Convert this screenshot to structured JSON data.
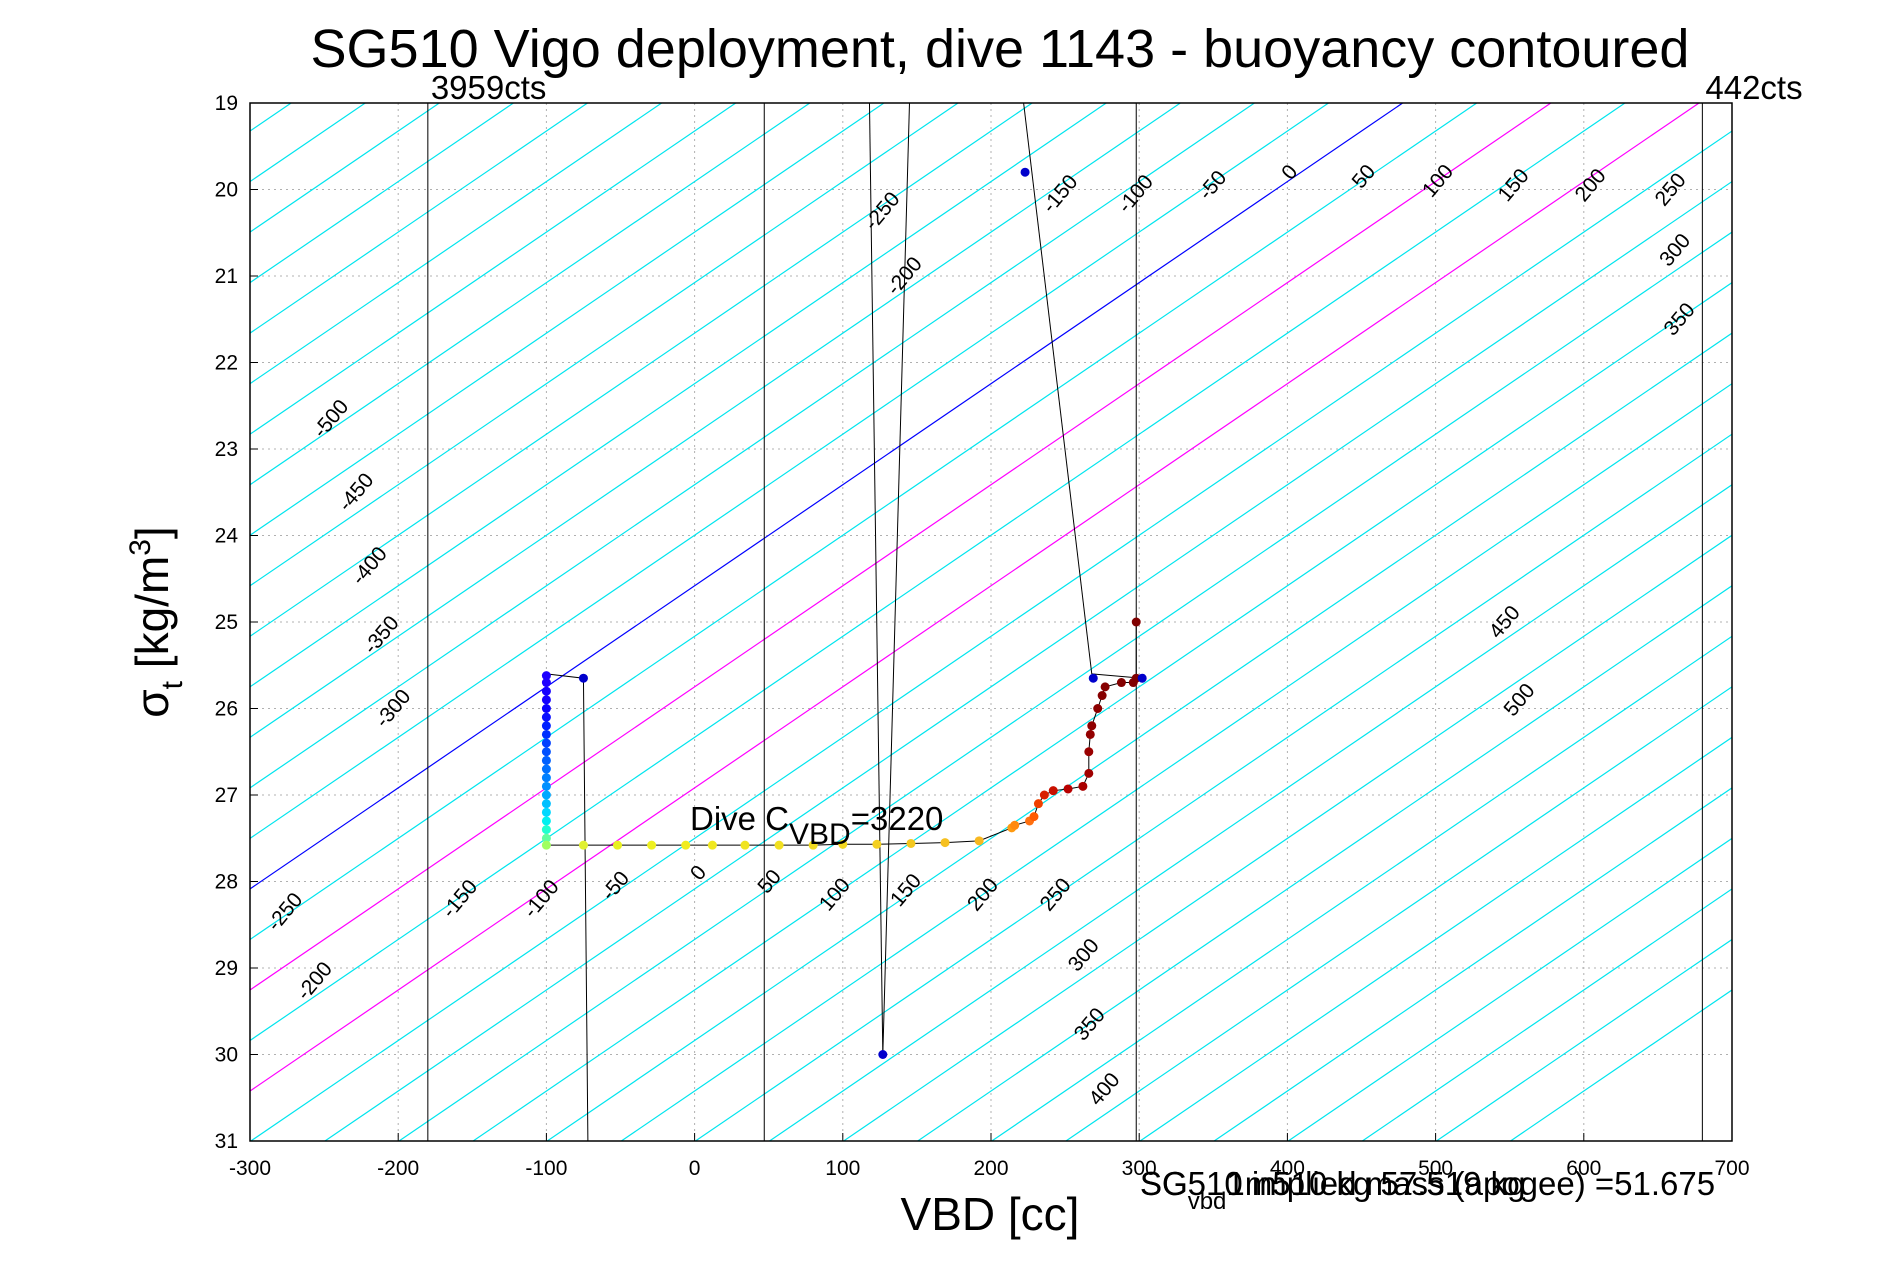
{
  "chart_data": {
    "type": "scatter",
    "title": "SG510 Vigo deployment, dive 1143 - buoyancy contoured",
    "xlabel": "VBD [cc]",
    "ylabel": "σt [kg/m3]",
    "ylabel_parts": {
      "sigma": "σ",
      "sub": "t",
      "main": " [kg/m",
      "sup": "3",
      "end": "]"
    },
    "xlim": [
      -300,
      700
    ],
    "ylim": [
      19,
      31
    ],
    "y_reversed": true,
    "grid": true,
    "x_ticks": [
      -300,
      -200,
      -100,
      0,
      100,
      200,
      300,
      400,
      500,
      600,
      700
    ],
    "y_ticks": [
      19,
      20,
      21,
      22,
      23,
      24,
      25,
      26,
      27,
      28,
      29,
      30,
      31
    ],
    "vertical_lines": [
      {
        "x": -180,
        "label": "3959cts"
      },
      {
        "x": 680,
        "label": "442cts"
      },
      {
        "x": 47
      },
      {
        "x": 298
      }
    ],
    "buoyancy_contours": {
      "unit_note": "contour levels (buoyancy)",
      "levels": [
        -500,
        -450,
        -400,
        -350,
        -300,
        -250,
        -200,
        -150,
        -100,
        -50,
        0,
        50,
        100,
        150,
        200,
        250,
        300,
        350,
        400,
        450,
        500
      ],
      "highlight": {
        "0": "#0000ff",
        "100": "#ff00ff",
        "200": "#ff00ff"
      },
      "default_color": "#00e5ee",
      "labels": [
        {
          "level": "-500",
          "vbd": -242,
          "sigma": 22.7
        },
        {
          "level": "-450",
          "vbd": -225,
          "sigma": 23.55
        },
        {
          "level": "-400",
          "vbd": -216,
          "sigma": 24.4
        },
        {
          "level": "-350",
          "vbd": -208,
          "sigma": 25.2
        },
        {
          "level": "-300",
          "vbd": -200,
          "sigma": 26.05
        },
        {
          "level": "-250",
          "vbd": -273,
          "sigma": 28.4
        },
        {
          "level": "-200",
          "vbd": -253,
          "sigma": 29.2
        },
        {
          "level": "-150",
          "vbd": -155,
          "sigma": 28.25
        },
        {
          "level": "-100",
          "vbd": -100,
          "sigma": 28.25
        },
        {
          "level": "-50",
          "vbd": -50,
          "sigma": 28.1
        },
        {
          "level": "0",
          "vbd": 6,
          "sigma": 27.95
        },
        {
          "level": "50",
          "vbd": 54,
          "sigma": 28.05
        },
        {
          "level": "100",
          "vbd": 98,
          "sigma": 28.2
        },
        {
          "level": "150",
          "vbd": 146,
          "sigma": 28.15
        },
        {
          "level": "200",
          "vbd": 198,
          "sigma": 28.2
        },
        {
          "level": "250",
          "vbd": 247,
          "sigma": 28.2
        },
        {
          "level": "300",
          "vbd": 266,
          "sigma": 28.9
        },
        {
          "level": "350",
          "vbd": 270,
          "sigma": 29.7
        },
        {
          "level": "400",
          "vbd": 280,
          "sigma": 30.45
        },
        {
          "level": "-250",
          "vbd": 130,
          "sigma": 20.3
        },
        {
          "level": "-200",
          "vbd": 145,
          "sigma": 21.05
        },
        {
          "level": "-150",
          "vbd": 250,
          "sigma": 20.1
        },
        {
          "level": "-100",
          "vbd": 301,
          "sigma": 20.1
        },
        {
          "level": "-50",
          "vbd": 353,
          "sigma": 20.0
        },
        {
          "level": "0",
          "vbd": 405,
          "sigma": 19.85
        },
        {
          "level": "50",
          "vbd": 455,
          "sigma": 19.9
        },
        {
          "level": "100",
          "vbd": 505,
          "sigma": 19.95
        },
        {
          "level": "150",
          "vbd": 556,
          "sigma": 20.0
        },
        {
          "level": "200",
          "vbd": 608,
          "sigma": 20.0
        },
        {
          "level": "250",
          "vbd": 662,
          "sigma": 20.05
        },
        {
          "level": "300",
          "vbd": 665,
          "sigma": 20.75
        },
        {
          "level": "350",
          "vbd": 668,
          "sigma": 21.55
        },
        {
          "level": "450",
          "vbd": 550,
          "sigma": 25.05
        },
        {
          "level": "500",
          "vbd": 560,
          "sigma": 25.95
        }
      ]
    },
    "dive_track": {
      "color": "#000000",
      "points": [
        [
          -100,
          25.6
        ],
        [
          -75,
          25.65
        ],
        [
          -72,
          31.0
        ]
      ]
    },
    "extra_lines": [
      {
        "points": [
          [
            118,
            19.0
          ],
          [
            127,
            30.0
          ]
        ]
      },
      {
        "points": [
          [
            127,
            30.0
          ],
          [
            145,
            19.0
          ]
        ]
      },
      {
        "points": [
          [
            222,
            19.0
          ],
          [
            268,
            25.6
          ]
        ]
      },
      {
        "points": [
          [
            268,
            25.6
          ],
          [
            302,
            25.65
          ]
        ]
      }
    ],
    "series": [
      {
        "name": "",
        "points": [
          [
            -100,
            25.62
          ],
          [
            -100,
            25.7
          ],
          [
            -100,
            25.8
          ],
          [
            -100,
            25.9
          ],
          [
            -100,
            26.0
          ],
          [
            -100,
            26.1
          ],
          [
            -100,
            26.2
          ],
          [
            -100,
            26.3
          ],
          [
            -100,
            26.4
          ],
          [
            -100,
            26.5
          ],
          [
            -100,
            26.6
          ],
          [
            -100,
            26.7
          ],
          [
            -100,
            26.8
          ],
          [
            -100,
            26.9
          ],
          [
            -100,
            27.0
          ],
          [
            -100,
            27.1
          ],
          [
            -100,
            27.2
          ],
          [
            -100,
            27.3
          ],
          [
            -100,
            27.4
          ],
          [
            -100,
            27.5
          ],
          [
            -100,
            27.58
          ],
          [
            -75,
            27.58
          ],
          [
            -52,
            27.58
          ],
          [
            -29,
            27.58
          ],
          [
            -6,
            27.58
          ],
          [
            12,
            27.58
          ],
          [
            34,
            27.58
          ],
          [
            57,
            27.58
          ],
          [
            80,
            27.58
          ],
          [
            100,
            27.57
          ],
          [
            123,
            27.57
          ],
          [
            146,
            27.56
          ],
          [
            169,
            27.55
          ],
          [
            192,
            27.53
          ],
          [
            214,
            27.38
          ],
          [
            216,
            27.35
          ],
          [
            226,
            27.3
          ],
          [
            229,
            27.25
          ],
          [
            232,
            27.1
          ],
          [
            236,
            27.0
          ],
          [
            242,
            26.95
          ],
          [
            252,
            26.93
          ],
          [
            262,
            26.9
          ],
          [
            266,
            26.75
          ],
          [
            266,
            26.5
          ],
          [
            267,
            26.3
          ],
          [
            268,
            26.2
          ],
          [
            272,
            26.0
          ],
          [
            275,
            25.85
          ],
          [
            277,
            25.75
          ],
          [
            288,
            25.7
          ],
          [
            296,
            25.7
          ],
          [
            298,
            25.65
          ],
          [
            298,
            25.0
          ],
          [
            -75,
            25.65
          ],
          [
            269,
            25.65
          ],
          [
            302,
            25.65
          ],
          [
            223,
            19.8
          ],
          [
            127,
            30.0
          ]
        ],
        "colors": [
          "#1e00ff",
          "#1e00ff",
          "#1400ff",
          "#1400ff",
          "#0a00ff",
          "#0a10ff",
          "#0020ff",
          "#0030ff",
          "#0040ff",
          "#0050ff",
          "#0060ff",
          "#0070ff",
          "#0080ff",
          "#0090ff",
          "#00a8ff",
          "#00c0ff",
          "#00d8ff",
          "#00f0f0",
          "#20ffd0",
          "#60ffa0",
          "#a0ff60",
          "#e0f030",
          "#e8f020",
          "#eef020",
          "#f0ec20",
          "#f0e820",
          "#f0e420",
          "#f2e020",
          "#f2dc20",
          "#f4d820",
          "#f4d020",
          "#f4c820",
          "#f6c020",
          "#f8b820",
          "#ff9a10",
          "#ff8a10",
          "#ff7010",
          "#ff5a00",
          "#f04000",
          "#d82000",
          "#c81000",
          "#b80000",
          "#aa0000",
          "#a00000",
          "#9a0000",
          "#940000",
          "#900000",
          "#8c0000",
          "#880000",
          "#860000",
          "#840000",
          "#820000",
          "#800000",
          "#800000",
          "#0000cc",
          "#0000cc",
          "#0000cc",
          "#0000cc",
          "#0000cc"
        ]
      }
    ],
    "annotations": {
      "dive_c": {
        "text_main": "Dive C",
        "text_sub": "VBD",
        "text_end": "=3220",
        "vbd": 0,
        "sigma": 27.5
      },
      "footer_overlap_a": "SG510 implied mass (apogee) =51.675",
      "footer_overlap_b": {
        "main": "SG",
        "sub": "vbd",
        "end": "1m510 kg 57.519 kg"
      }
    }
  }
}
